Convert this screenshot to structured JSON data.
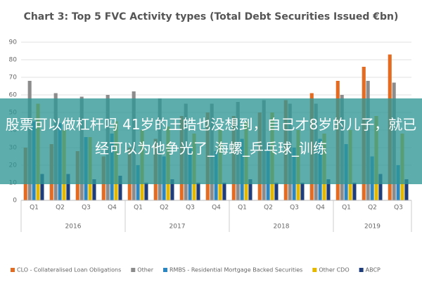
{
  "chart_data": {
    "type": "bar",
    "title": "Chart 3: Top 5 FVC Activity types (Total Debt Securities Issued €bn)",
    "categories": [
      "Q1",
      "Q2",
      "Q3",
      "Q4",
      "Q1",
      "Q2",
      "Q3",
      "Q4",
      "Q1",
      "Q2",
      "Q3",
      "Q4",
      "Q1",
      "Q2",
      "Q3"
    ],
    "groups": [
      {
        "label": "2016",
        "size": 4
      },
      {
        "label": "2017",
        "size": 4
      },
      {
        "label": "2018",
        "size": 4
      },
      {
        "label": "2019",
        "size": 3
      }
    ],
    "series": [
      {
        "name": "CLO - Collateralised Loan Obligations",
        "color": "#e46c22",
        "values": [
          30,
          32,
          28,
          25,
          30,
          35,
          48,
          50,
          48,
          50,
          57,
          61,
          68,
          76,
          83
        ]
      },
      {
        "name": "Other",
        "color": "#8c8c8c",
        "values": [
          68,
          61,
          59,
          60,
          62,
          58,
          55,
          55,
          56,
          57,
          55,
          55,
          60,
          68,
          67
        ]
      },
      {
        "name": "RMBS - Residential Mortgage Backed Securities",
        "color": "#2e86c1",
        "values": [
          45,
          44,
          36,
          38,
          20,
          25,
          30,
          28,
          35,
          33,
          30,
          35,
          32,
          25,
          20
        ]
      },
      {
        "name": "Other CDO",
        "color": "#e5b800",
        "values": [
          55,
          40,
          36,
          45,
          40,
          42,
          38,
          40,
          45,
          50,
          40,
          38,
          40,
          48,
          38
        ]
      },
      {
        "name": "ABCP",
        "color": "#1f3d7a",
        "values": [
          15,
          15,
          12,
          14,
          10,
          12,
          10,
          10,
          12,
          10,
          10,
          12,
          10,
          15,
          12
        ]
      }
    ],
    "ylim": [
      0,
      90
    ],
    "yticks": [
      0,
      10,
      20,
      30,
      40,
      50,
      60,
      70,
      80,
      90
    ],
    "grid": true,
    "legend": "bottom"
  },
  "banner": {
    "text": "股票可以做杠杆吗 41岁的王皓也没想到，自己才8岁的儿子，就已经可以为他争光了_海螺_乒乓球_训练"
  }
}
